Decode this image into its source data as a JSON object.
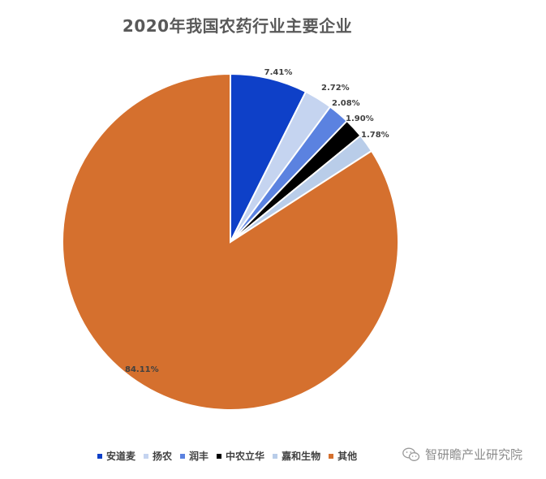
{
  "chart_data": {
    "type": "pie",
    "title": "2020年我国农药行业主要企业",
    "categories": [
      "安道麦",
      "扬农",
      "润丰",
      "中农立华",
      "嘉和生物",
      "其他"
    ],
    "values": [
      7.41,
      2.72,
      2.08,
      1.9,
      1.78,
      84.11
    ],
    "labels": [
      "7.41%",
      "2.72%",
      "2.08%",
      "1.90%",
      "1.78%",
      "84.11%"
    ],
    "colors": [
      "#0E40C8",
      "#C5D4F0",
      "#5B82E0",
      "#000000",
      "#B9CDE9",
      "#D5702E"
    ],
    "legend_position": "bottom"
  },
  "watermark": {
    "text": "智研瞻产业研究院",
    "icon": "wechat-icon"
  }
}
